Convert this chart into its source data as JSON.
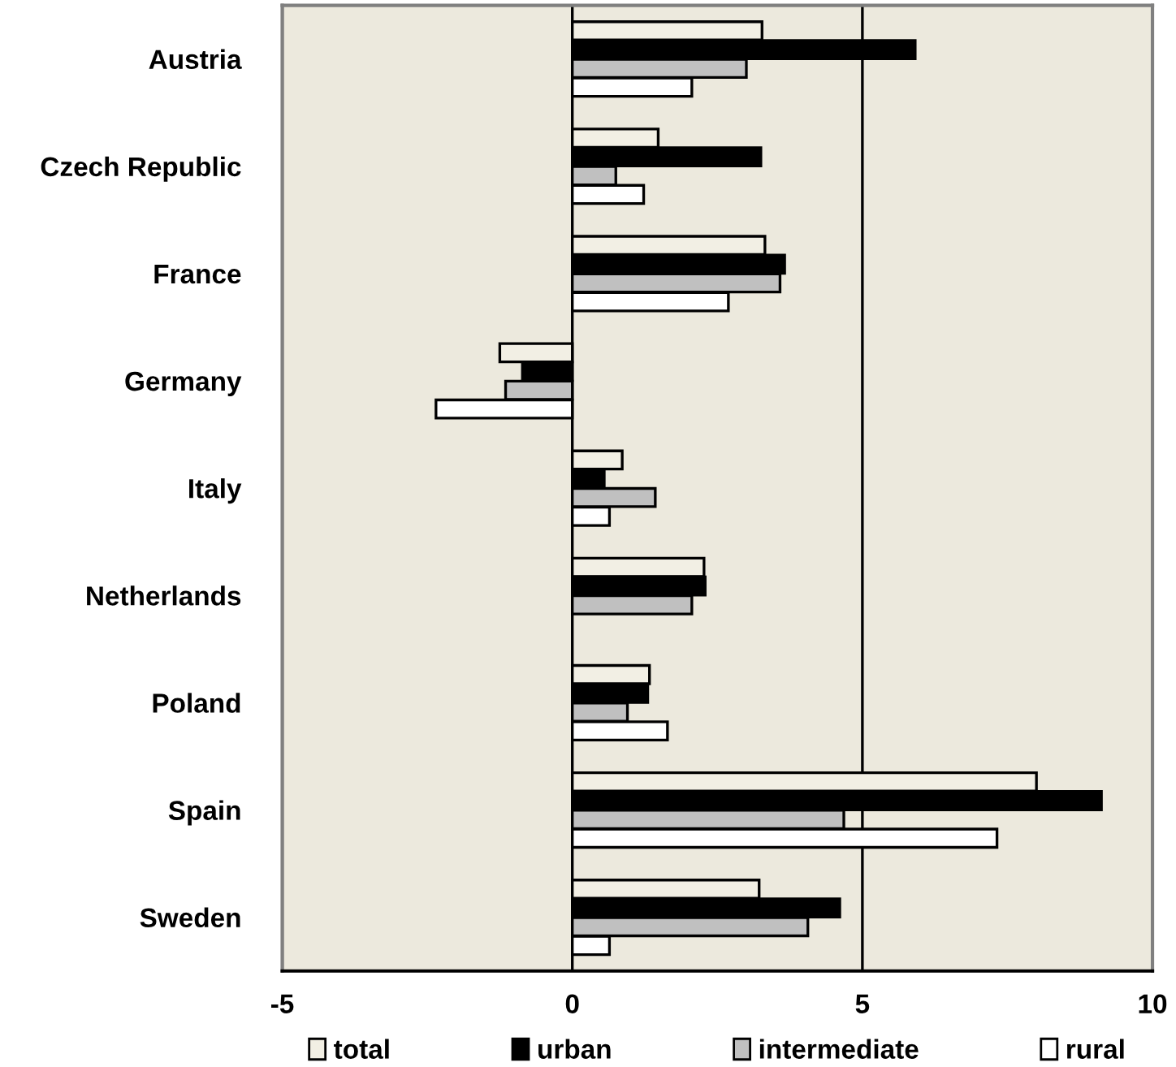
{
  "chart_data": {
    "type": "bar",
    "orientation": "horizontal",
    "categories": [
      "Austria",
      "Czech Republic",
      "France",
      "Germany",
      "Italy",
      "Netherlands",
      "Poland",
      "Spain",
      "Sweden"
    ],
    "series": [
      {
        "name": "total",
        "color": "#f2efe4",
        "values": [
          3.27,
          1.48,
          3.32,
          -1.25,
          0.86,
          2.27,
          1.33,
          8.0,
          3.22
        ]
      },
      {
        "name": "urban",
        "color": "#000000",
        "values": [
          5.91,
          3.25,
          3.66,
          -0.86,
          0.55,
          2.29,
          1.3,
          9.12,
          4.61
        ]
      },
      {
        "name": "intermediate",
        "color": "#c0c0c0",
        "values": [
          3.0,
          0.75,
          3.58,
          -1.15,
          1.43,
          2.06,
          0.95,
          4.68,
          4.06
        ]
      },
      {
        "name": "rural",
        "color": "#ffffff",
        "values": [
          2.06,
          1.23,
          2.69,
          -2.35,
          0.64,
          null,
          1.64,
          7.32,
          0.64
        ]
      }
    ],
    "xlim": [
      -5,
      10
    ],
    "xticks": [
      -5,
      0,
      5,
      10
    ],
    "grid": "x",
    "legend": "bottom"
  }
}
